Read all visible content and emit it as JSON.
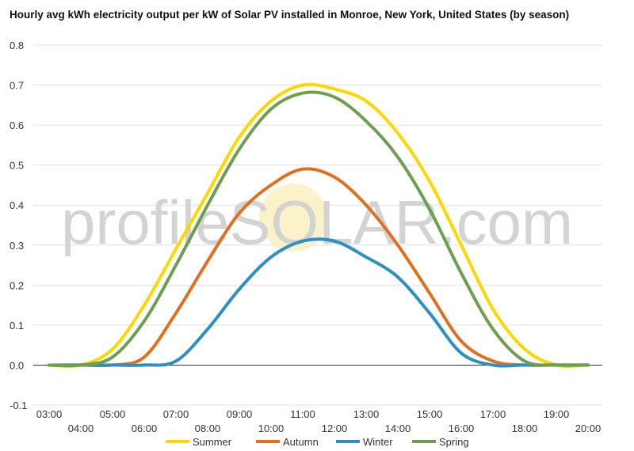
{
  "chart_data": {
    "type": "line",
    "title": "Hourly avg kWh electricity output per kW of Solar PV installed in Monroe, New York, United States (by season)",
    "xlabel": "",
    "ylabel": "",
    "ylim": [
      -0.1,
      0.8
    ],
    "yticks": [
      "0.8",
      "0.7",
      "0.6",
      "0.5",
      "0.4",
      "0.3",
      "0.2",
      "0.1",
      "0.0",
      "-0.1"
    ],
    "yticks_values": [
      0.8,
      0.7,
      0.6,
      0.5,
      0.4,
      0.3,
      0.2,
      0.1,
      0.0,
      -0.1
    ],
    "x": [
      "03:00",
      "04:00",
      "05:00",
      "06:00",
      "07:00",
      "08:00",
      "09:00",
      "10:00",
      "11:00",
      "12:00",
      "13:00",
      "14:00",
      "15:00",
      "16:00",
      "17:00",
      "18:00",
      "19:00",
      "20:00"
    ],
    "grid": true,
    "legend_position": "bottom",
    "series": [
      {
        "name": "Summer",
        "color": "#ffd700",
        "values": [
          0.0,
          0.0,
          0.04,
          0.15,
          0.29,
          0.43,
          0.57,
          0.66,
          0.7,
          0.69,
          0.66,
          0.58,
          0.46,
          0.3,
          0.14,
          0.04,
          0.0,
          0.0
        ]
      },
      {
        "name": "Autumn",
        "color": "#e07020",
        "values": [
          0.0,
          0.0,
          0.0,
          0.02,
          0.13,
          0.26,
          0.38,
          0.45,
          0.49,
          0.47,
          0.4,
          0.3,
          0.18,
          0.06,
          0.01,
          0.0,
          0.0,
          0.0
        ]
      },
      {
        "name": "Winter",
        "color": "#2d8fc4",
        "values": [
          0.0,
          0.0,
          0.0,
          0.0,
          0.01,
          0.09,
          0.19,
          0.27,
          0.31,
          0.31,
          0.27,
          0.22,
          0.13,
          0.03,
          0.0,
          0.0,
          0.0,
          0.0
        ]
      },
      {
        "name": "Spring",
        "color": "#6e9e50",
        "values": [
          0.0,
          0.0,
          0.02,
          0.11,
          0.25,
          0.4,
          0.54,
          0.64,
          0.68,
          0.67,
          0.61,
          0.52,
          0.39,
          0.23,
          0.09,
          0.01,
          0.0,
          0.0
        ]
      }
    ]
  },
  "watermark": {
    "text": "profileSOLAR.com"
  }
}
